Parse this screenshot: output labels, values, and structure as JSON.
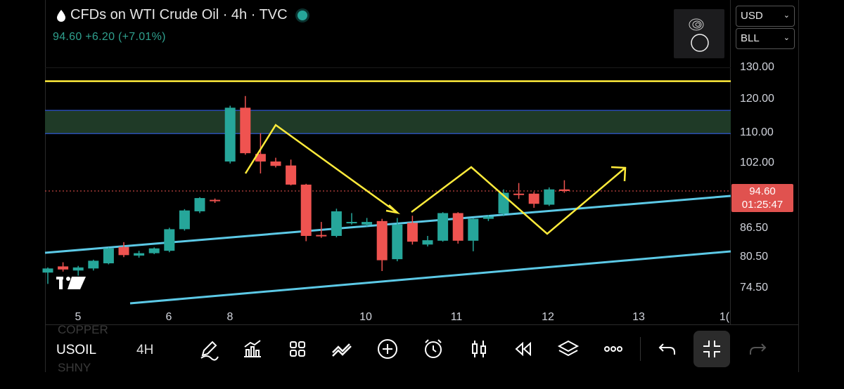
{
  "header": {
    "title": "CFDs on WTI Crude Oil · 4h · TVC",
    "quote": "94.60  +6.20 (+7.01%)"
  },
  "selectors": {
    "currency": "USD",
    "unit": "BLL"
  },
  "price_badge": {
    "price": "94.60",
    "countdown": "01:25:47"
  },
  "watermark": "17",
  "chart_data": {
    "type": "candlestick",
    "y_ticks": [
      "130.00",
      "120.00",
      "110.00",
      "102.00",
      "94.60",
      "86.50",
      "80.50",
      "74.50"
    ],
    "x_ticks": [
      "5",
      "6",
      "8",
      "10",
      "11",
      "12",
      "13",
      "1("
    ],
    "last_price": 94.6,
    "candles": [
      {
        "o": 77.2,
        "h": 78.2,
        "l": 75.0,
        "c": 78.0
      },
      {
        "o": 78.4,
        "h": 79.2,
        "l": 77.4,
        "c": 77.8
      },
      {
        "o": 77.6,
        "h": 78.5,
        "l": 76.6,
        "c": 78.2
      },
      {
        "o": 78.0,
        "h": 79.7,
        "l": 77.6,
        "c": 79.5
      },
      {
        "o": 79.0,
        "h": 82.2,
        "l": 78.8,
        "c": 82.0
      },
      {
        "o": 82.3,
        "h": 83.3,
        "l": 80.2,
        "c": 80.6
      },
      {
        "o": 80.5,
        "h": 81.5,
        "l": 80.1,
        "c": 81.0
      },
      {
        "o": 81.0,
        "h": 82.2,
        "l": 80.8,
        "c": 82.0
      },
      {
        "o": 81.5,
        "h": 86.3,
        "l": 81.2,
        "c": 86.0
      },
      {
        "o": 86.0,
        "h": 90.5,
        "l": 85.7,
        "c": 90.2
      },
      {
        "o": 90.0,
        "h": 93.2,
        "l": 89.6,
        "c": 93.0
      },
      {
        "o": 92.6,
        "h": 92.9,
        "l": 91.9,
        "c": 92.4
      },
      {
        "o": 102.0,
        "h": 117.6,
        "l": 101.5,
        "c": 117.0
      },
      {
        "o": 117.0,
        "h": 120.5,
        "l": 103.8,
        "c": 104.2
      },
      {
        "o": 104.0,
        "h": 109.5,
        "l": 99.0,
        "c": 102.0
      },
      {
        "o": 102.0,
        "h": 103.0,
        "l": 100.5,
        "c": 100.9
      },
      {
        "o": 101.0,
        "h": 102.5,
        "l": 96.0,
        "c": 96.2
      },
      {
        "o": 96.2,
        "h": 96.4,
        "l": 83.5,
        "c": 84.6
      },
      {
        "o": 84.8,
        "h": 87.6,
        "l": 84.2,
        "c": 84.6
      },
      {
        "o": 84.6,
        "h": 90.6,
        "l": 84.3,
        "c": 90.0
      },
      {
        "o": 87.4,
        "h": 89.6,
        "l": 87.0,
        "c": 87.6
      },
      {
        "o": 87.0,
        "h": 88.5,
        "l": 86.6,
        "c": 87.6
      },
      {
        "o": 87.8,
        "h": 88.3,
        "l": 77.5,
        "c": 79.6
      },
      {
        "o": 79.8,
        "h": 88.5,
        "l": 79.4,
        "c": 87.0
      },
      {
        "o": 87.4,
        "h": 89.0,
        "l": 82.8,
        "c": 83.4
      },
      {
        "o": 82.8,
        "h": 84.6,
        "l": 82.4,
        "c": 83.7
      },
      {
        "o": 83.6,
        "h": 89.8,
        "l": 83.4,
        "c": 89.6
      },
      {
        "o": 89.6,
        "h": 89.8,
        "l": 83.0,
        "c": 83.6
      },
      {
        "o": 83.6,
        "h": 88.4,
        "l": 81.4,
        "c": 88.3
      },
      {
        "o": 88.3,
        "h": 89.2,
        "l": 87.8,
        "c": 88.8
      },
      {
        "o": 89.5,
        "h": 95.0,
        "l": 88.9,
        "c": 94.2
      },
      {
        "o": 94.0,
        "h": 96.6,
        "l": 92.8,
        "c": 93.8
      },
      {
        "o": 94.0,
        "h": 94.4,
        "l": 90.8,
        "c": 91.7
      },
      {
        "o": 91.5,
        "h": 95.5,
        "l": 91.2,
        "c": 95.0
      },
      {
        "o": 95.0,
        "h": 97.3,
        "l": 94.2,
        "c": 94.6
      }
    ],
    "horizontal_lines": [
      {
        "price": 125.2,
        "color": "#ffeb3b"
      },
      {
        "zone": [
          109.4,
          116.2
        ],
        "color": "#1f3a27",
        "border": "#2a4bb0"
      }
    ],
    "colors": {
      "up": "#26a69a",
      "down": "#ef5350",
      "trendline": "#5cc9e6",
      "drawing": "#ffeb3b",
      "last_price_line": "#ef5350"
    }
  },
  "bottom": {
    "symbol": "USOIL",
    "timeframe": "4H",
    "ghost_above": "COPPER",
    "ghost_below": "SHNY",
    "icons": [
      "pencil-icon",
      "indicators-icon",
      "grid-icon",
      "trend-icon",
      "plus-circle-icon",
      "alarm-icon",
      "candles-icon",
      "rewind-icon",
      "layers-icon",
      "more-icon",
      "undo-icon",
      "collapse-icon",
      "redo-icon"
    ]
  }
}
